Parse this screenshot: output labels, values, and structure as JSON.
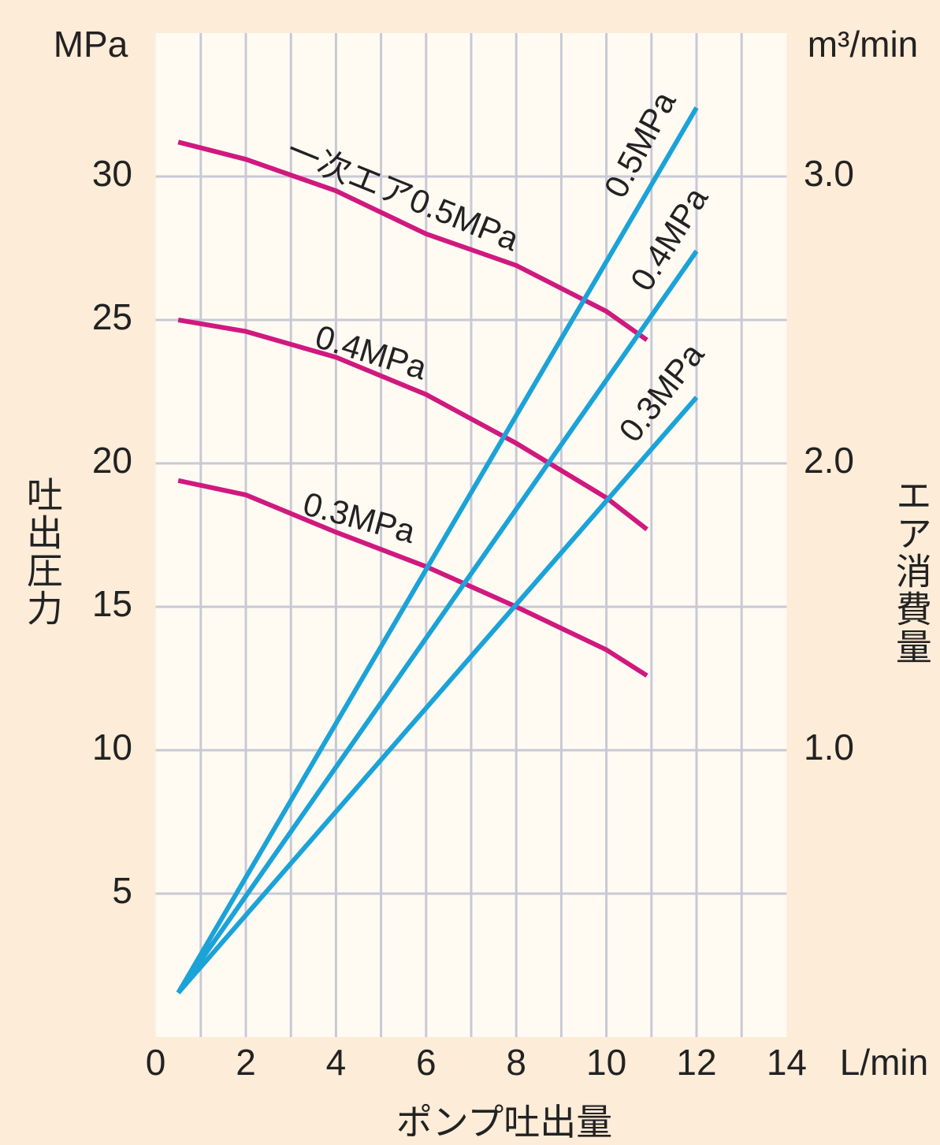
{
  "chart_data": {
    "type": "line",
    "ylabel": "吐出圧力",
    "yunit": "MPa",
    "y2label": "エア消費量",
    "y2unit": "m³/min",
    "xlabel": "ポンプ吐出量",
    "xunit": "L/min",
    "xlim": [
      0,
      14
    ],
    "xticks": [
      0,
      2,
      4,
      6,
      8,
      10,
      12,
      14
    ],
    "xminor": [
      1,
      3,
      5,
      7,
      9,
      11,
      13
    ],
    "ylim": [
      0,
      35
    ],
    "yticks": [
      5,
      10,
      15,
      20,
      25,
      30
    ],
    "y2lim": [
      0,
      3.5
    ],
    "y2ticks": [
      {
        "value": 1,
        "label": "1.0"
      },
      {
        "value": 2,
        "label": "2.0"
      },
      {
        "value": 3,
        "label": "3.0"
      }
    ],
    "grid": true,
    "series": [
      {
        "name": "一次エア0.5MPa",
        "color": "#d0197f",
        "x": [
          0.5,
          2,
          4,
          6,
          8,
          10,
          10.9
        ],
        "values": [
          31.2,
          30.6,
          29.5,
          28.0,
          26.9,
          25.3,
          24.3
        ]
      },
      {
        "name": "0.4MPa",
        "color": "#d0197f",
        "x": [
          0.5,
          2,
          4,
          6,
          8,
          10,
          10.9
        ],
        "values": [
          25.0,
          24.6,
          23.7,
          22.4,
          20.7,
          18.8,
          17.7
        ]
      },
      {
        "name": "0.3MPa",
        "color": "#d0197f",
        "x": [
          0.5,
          2,
          4,
          6,
          8,
          10,
          10.9
        ],
        "values": [
          19.4,
          18.9,
          17.6,
          16.4,
          15.0,
          13.5,
          12.6
        ]
      },
      {
        "name": "0.5MPa",
        "color": "#1ba3d8",
        "axis": "y2",
        "x": [
          0.5,
          12
        ],
        "values": [
          0.154,
          3.24
        ]
      },
      {
        "name": "0.4MPa",
        "color": "#1ba3d8",
        "axis": "y2",
        "x": [
          0.5,
          12
        ],
        "values": [
          0.154,
          2.74
        ]
      },
      {
        "name": "0.3MPa",
        "color": "#1ba3d8",
        "axis": "y2",
        "x": [
          0.5,
          12
        ],
        "values": [
          0.154,
          2.23
        ]
      }
    ]
  }
}
